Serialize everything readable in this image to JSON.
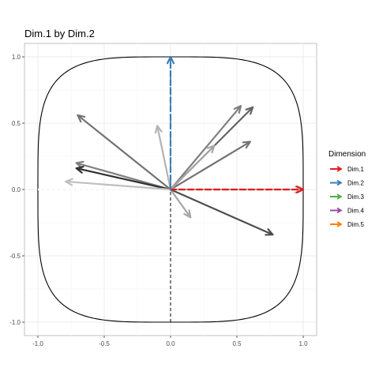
{
  "chart_data": {
    "type": "scatter",
    "subtype": "correlation-circle-arrows",
    "title": "Dim.1 by Dim.2",
    "xlabel": "",
    "ylabel": "",
    "xlim": [
      -1.0,
      1.0
    ],
    "ylim": [
      -1.0,
      1.0
    ],
    "x_ticks": [
      -1.0,
      -0.5,
      0.0,
      0.5,
      1.0
    ],
    "y_ticks": [
      -1.0,
      -0.5,
      0.0,
      0.5,
      1.0
    ],
    "x_tick_labels": [
      "-1.0",
      "-0.5",
      "0.0",
      "0.5",
      "1.0"
    ],
    "y_tick_labels": [
      "-1.0",
      "-0.5",
      "0.0",
      "0.5",
      "1.0"
    ],
    "grid": true,
    "background": "#ffffff",
    "grid_color": "#ebebeb",
    "panel_border": "#b3b3b3",
    "legend": {
      "title": "Dimension",
      "position": "right",
      "items": [
        {
          "label": "Dim.1",
          "color": "#e41a1c"
        },
        {
          "label": "Dim.2",
          "color": "#377eb8"
        },
        {
          "label": "Dim.3",
          "color": "#4daf4a"
        },
        {
          "label": "Dim.4",
          "color": "#984ea3"
        },
        {
          "label": "Dim.5",
          "color": "#ff7f00"
        }
      ]
    },
    "dimension_vectors": [
      {
        "dimension": "Dim.1",
        "x": 1.0,
        "y": 0.0,
        "color": "#e41a1c"
      },
      {
        "dimension": "Dim.2",
        "x": 0.0,
        "y": 1.0,
        "color": "#377eb8"
      }
    ],
    "variable_arrows": [
      {
        "x": 0.53,
        "y": 0.63,
        "color": "#7f7f7f"
      },
      {
        "x": 0.62,
        "y": 0.62,
        "color": "#666666"
      },
      {
        "x": 0.6,
        "y": 0.36,
        "color": "#737373"
      },
      {
        "x": 0.33,
        "y": 0.33,
        "color": "#a6a6a6"
      },
      {
        "x": -0.1,
        "y": 0.48,
        "color": "#b3b3b3"
      },
      {
        "x": -0.7,
        "y": 0.56,
        "color": "#737373"
      },
      {
        "x": -0.71,
        "y": 0.2,
        "color": "#808080"
      },
      {
        "x": -0.71,
        "y": 0.16,
        "color": "#333333"
      },
      {
        "x": -0.79,
        "y": 0.06,
        "color": "#bfbfbf"
      },
      {
        "x": 0.15,
        "y": -0.21,
        "color": "#a6a6a6"
      },
      {
        "x": 0.77,
        "y": -0.34,
        "color": "#4d4d4d"
      },
      {
        "x": 0.99,
        "y": 0.0,
        "color": "#b3b3b3"
      }
    ],
    "dimension_lines": [
      {
        "x": [
          0.0,
          0.0
        ],
        "y": [
          -1.0,
          1.0
        ],
        "style": "dashed",
        "color": "#000000"
      },
      {
        "x": [
          -1.0,
          0.0
        ],
        "y": [
          0.0,
          0.0
        ],
        "style": "dashed",
        "color": "#ffffff"
      }
    ],
    "boundary": {
      "shape": "superellipse",
      "radius": 1.0,
      "exponent": 4,
      "color": "#000000"
    }
  }
}
